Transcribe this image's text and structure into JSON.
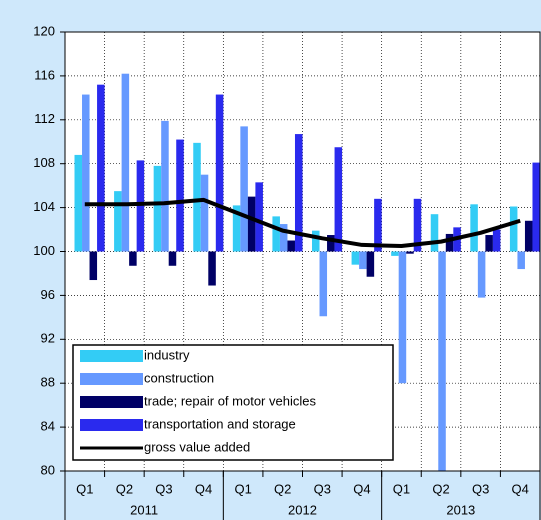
{
  "chart_data": {
    "type": "bar",
    "categories": [
      "Q1",
      "Q2",
      "Q3",
      "Q4",
      "Q1",
      "Q2",
      "Q3",
      "Q4",
      "Q1",
      "Q2",
      "Q3",
      "Q4"
    ],
    "years": [
      "2011",
      "2012",
      "2013"
    ],
    "bar_base": 100,
    "series": [
      {
        "name": "industry",
        "type": "bar",
        "color": "#33ccf5",
        "values": [
          108.8,
          105.5,
          107.8,
          109.9,
          104.2,
          103.2,
          101.9,
          98.8,
          99.6,
          103.4,
          104.3,
          104.1
        ]
      },
      {
        "name": "construction",
        "type": "bar",
        "color": "#6699ff",
        "values": [
          114.3,
          116.2,
          111.9,
          107.0,
          111.4,
          102.5,
          94.1,
          98.4,
          88.0,
          80,
          95.8,
          98.4
        ]
      },
      {
        "name": "trade; repair of motor vehicles",
        "type": "bar",
        "color": "#000066",
        "values": [
          97.4,
          98.7,
          98.7,
          96.9,
          105.0,
          101.0,
          101.5,
          97.7,
          99.8,
          101.6,
          101.5,
          102.8
        ]
      },
      {
        "name": "transportation and storage",
        "type": "bar",
        "color": "#2a2aee",
        "values": [
          115.2,
          108.3,
          110.2,
          114.3,
          106.3,
          110.7,
          109.5,
          104.8,
          104.8,
          102.2,
          102.0,
          108.1
        ]
      },
      {
        "name": "gross value added",
        "type": "line",
        "color": "#000000",
        "values": [
          104.3,
          104.3,
          104.4,
          104.7,
          103.3,
          101.9,
          101.2,
          100.6,
          100.5,
          100.9,
          101.7,
          102.8
        ]
      }
    ],
    "ylim": [
      80,
      120
    ],
    "yticks": [
      80,
      84,
      88,
      92,
      96,
      100,
      104,
      108,
      112,
      116,
      120
    ],
    "grid": true
  }
}
